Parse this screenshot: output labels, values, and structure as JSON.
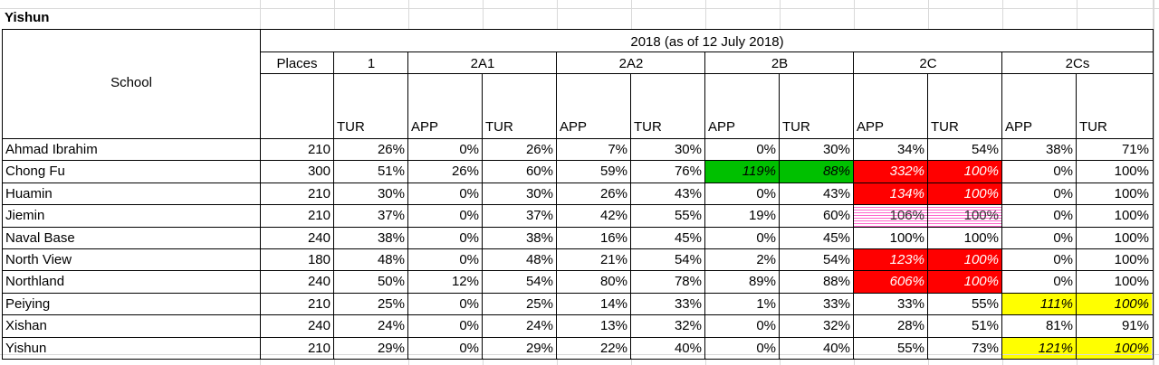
{
  "title": "Yishun",
  "header": {
    "period": "2018 (as of 12 July 2018)",
    "school_label": "School",
    "places_label": "Places",
    "phases": [
      "1",
      "2A1",
      "2A2",
      "2B",
      "2C",
      "2Cs"
    ],
    "sub_labels": [
      "TUR",
      "APP",
      "TUR",
      "APP",
      "TUR",
      "APP",
      "TUR",
      "APP",
      "TUR",
      "APP",
      "TUR"
    ]
  },
  "fill_colors": {
    "green": "#00c000",
    "red": "#ff0000",
    "yellow": "#ffff00",
    "pink_hatch": "#ff66cc"
  },
  "rows": [
    {
      "school": "Ahmad Ibrahim",
      "places": "210",
      "cells": [
        {
          "v": "26%"
        },
        {
          "v": "0%"
        },
        {
          "v": "26%"
        },
        {
          "v": "7%"
        },
        {
          "v": "30%"
        },
        {
          "v": "0%"
        },
        {
          "v": "30%"
        },
        {
          "v": "34%"
        },
        {
          "v": "54%"
        },
        {
          "v": "38%"
        },
        {
          "v": "71%"
        }
      ]
    },
    {
      "school": "Chong Fu",
      "places": "300",
      "cells": [
        {
          "v": "51%"
        },
        {
          "v": "26%"
        },
        {
          "v": "60%"
        },
        {
          "v": "59%"
        },
        {
          "v": "76%"
        },
        {
          "v": "119%",
          "fill": "green"
        },
        {
          "v": "88%",
          "fill": "green"
        },
        {
          "v": "332%",
          "fill": "red"
        },
        {
          "v": "100%",
          "fill": "red"
        },
        {
          "v": "0%"
        },
        {
          "v": "100%"
        }
      ]
    },
    {
      "school": "Huamin",
      "places": "210",
      "cells": [
        {
          "v": "30%"
        },
        {
          "v": "0%"
        },
        {
          "v": "30%"
        },
        {
          "v": "26%"
        },
        {
          "v": "43%"
        },
        {
          "v": "0%"
        },
        {
          "v": "43%"
        },
        {
          "v": "134%",
          "fill": "red"
        },
        {
          "v": "100%",
          "fill": "red"
        },
        {
          "v": "0%"
        },
        {
          "v": "100%"
        }
      ]
    },
    {
      "school": "Jiemin",
      "places": "210",
      "cells": [
        {
          "v": "37%"
        },
        {
          "v": "0%"
        },
        {
          "v": "37%"
        },
        {
          "v": "42%"
        },
        {
          "v": "55%"
        },
        {
          "v": "19%"
        },
        {
          "v": "60%"
        },
        {
          "v": "106%",
          "fill": "pink"
        },
        {
          "v": "100%",
          "fill": "pink"
        },
        {
          "v": "0%"
        },
        {
          "v": "100%"
        }
      ]
    },
    {
      "school": "Naval Base",
      "places": "240",
      "cells": [
        {
          "v": "38%"
        },
        {
          "v": "0%"
        },
        {
          "v": "38%"
        },
        {
          "v": "16%"
        },
        {
          "v": "45%"
        },
        {
          "v": "0%"
        },
        {
          "v": "45%"
        },
        {
          "v": "100%"
        },
        {
          "v": "100%"
        },
        {
          "v": "0%"
        },
        {
          "v": "100%"
        }
      ]
    },
    {
      "school": "North View",
      "places": "180",
      "cells": [
        {
          "v": "48%"
        },
        {
          "v": "0%"
        },
        {
          "v": "48%"
        },
        {
          "v": "21%"
        },
        {
          "v": "54%"
        },
        {
          "v": "2%"
        },
        {
          "v": "54%"
        },
        {
          "v": "123%",
          "fill": "red"
        },
        {
          "v": "100%",
          "fill": "red"
        },
        {
          "v": "0%"
        },
        {
          "v": "100%"
        }
      ]
    },
    {
      "school": "Northland",
      "places": "240",
      "cells": [
        {
          "v": "50%"
        },
        {
          "v": "12%"
        },
        {
          "v": "54%"
        },
        {
          "v": "80%"
        },
        {
          "v": "78%"
        },
        {
          "v": "89%"
        },
        {
          "v": "88%"
        },
        {
          "v": "606%",
          "fill": "red"
        },
        {
          "v": "100%",
          "fill": "red"
        },
        {
          "v": "0%"
        },
        {
          "v": "100%"
        }
      ]
    },
    {
      "school": "Peiying",
      "places": "210",
      "cells": [
        {
          "v": "25%"
        },
        {
          "v": "0%"
        },
        {
          "v": "25%"
        },
        {
          "v": "14%"
        },
        {
          "v": "33%"
        },
        {
          "v": "1%"
        },
        {
          "v": "33%"
        },
        {
          "v": "33%"
        },
        {
          "v": "55%"
        },
        {
          "v": "111%",
          "fill": "yellow"
        },
        {
          "v": "100%",
          "fill": "yellow"
        }
      ]
    },
    {
      "school": "Xishan",
      "places": "240",
      "cells": [
        {
          "v": "24%"
        },
        {
          "v": "0%"
        },
        {
          "v": "24%"
        },
        {
          "v": "13%"
        },
        {
          "v": "32%"
        },
        {
          "v": "0%"
        },
        {
          "v": "32%"
        },
        {
          "v": "28%"
        },
        {
          "v": "51%"
        },
        {
          "v": "81%"
        },
        {
          "v": "91%"
        }
      ]
    },
    {
      "school": "Yishun",
      "places": "210",
      "cells": [
        {
          "v": "29%"
        },
        {
          "v": "0%"
        },
        {
          "v": "29%"
        },
        {
          "v": "22%"
        },
        {
          "v": "40%"
        },
        {
          "v": "0%"
        },
        {
          "v": "40%"
        },
        {
          "v": "55%"
        },
        {
          "v": "73%"
        },
        {
          "v": "121%",
          "fill": "yellow"
        },
        {
          "v": "100%",
          "fill": "yellow"
        }
      ]
    }
  ]
}
